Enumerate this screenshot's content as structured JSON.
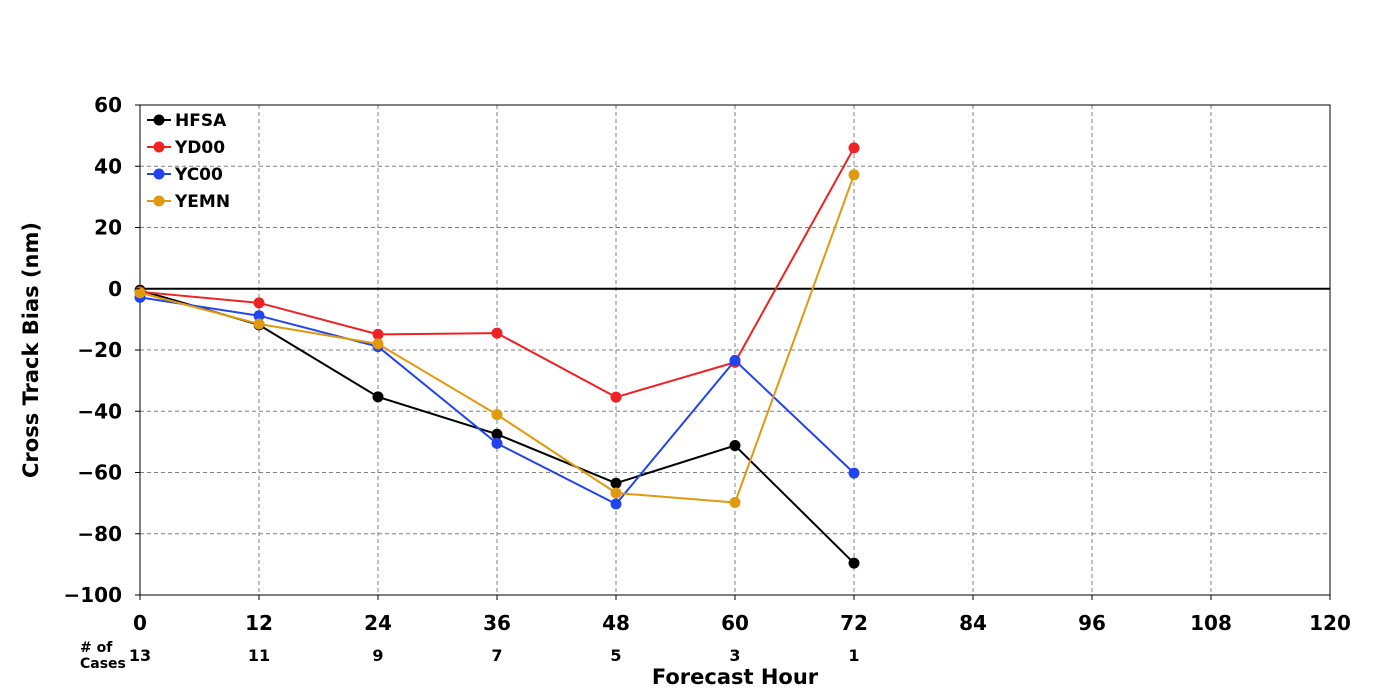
{
  "chart_data": {
    "type": "line",
    "xlabel": "Forecast Hour",
    "ylabel": "Cross Track Bias (nm)",
    "xlim": [
      0,
      120
    ],
    "ylim": [
      -100,
      60
    ],
    "xticks": [
      0,
      12,
      24,
      36,
      48,
      60,
      72,
      84,
      96,
      108,
      120
    ],
    "yticks": [
      60,
      40,
      20,
      0,
      -20,
      -40,
      -60,
      -80,
      -100
    ],
    "ytick_labels": [
      "60",
      "40",
      "20",
      "0",
      "−20",
      "−40",
      "−60",
      "−80",
      "−100"
    ],
    "grid": true,
    "legend_position": "top-left",
    "cases_label_line1": "# of",
    "cases_label_line2": "Cases",
    "cases": [
      {
        "x": 0,
        "n": "13"
      },
      {
        "x": 12,
        "n": "11"
      },
      {
        "x": 24,
        "n": "9"
      },
      {
        "x": 36,
        "n": "7"
      },
      {
        "x": 48,
        "n": "5"
      },
      {
        "x": 60,
        "n": "3"
      },
      {
        "x": 72,
        "n": "1"
      }
    ],
    "x": [
      0,
      12,
      24,
      36,
      48,
      60,
      72
    ],
    "series": [
      {
        "name": "HFSA",
        "color": "#000000",
        "values": [
          -0.5,
          -11.8,
          -35.3,
          -47.5,
          -63.5,
          -51.2,
          -89.6
        ]
      },
      {
        "name": "YD00",
        "color": "#ee2222",
        "values": [
          -1.0,
          -4.6,
          -14.9,
          -14.5,
          -35.4,
          -24.0,
          46.0
        ]
      },
      {
        "name": "YC00",
        "color": "#2244ee",
        "values": [
          -2.8,
          -8.8,
          -18.9,
          -50.5,
          -70.3,
          -23.4,
          -60.2
        ]
      },
      {
        "name": "YEMN",
        "color": "#e09a10",
        "values": [
          -1.3,
          -11.5,
          -18.0,
          -41.1,
          -66.7,
          -69.8,
          37.2
        ]
      }
    ]
  }
}
